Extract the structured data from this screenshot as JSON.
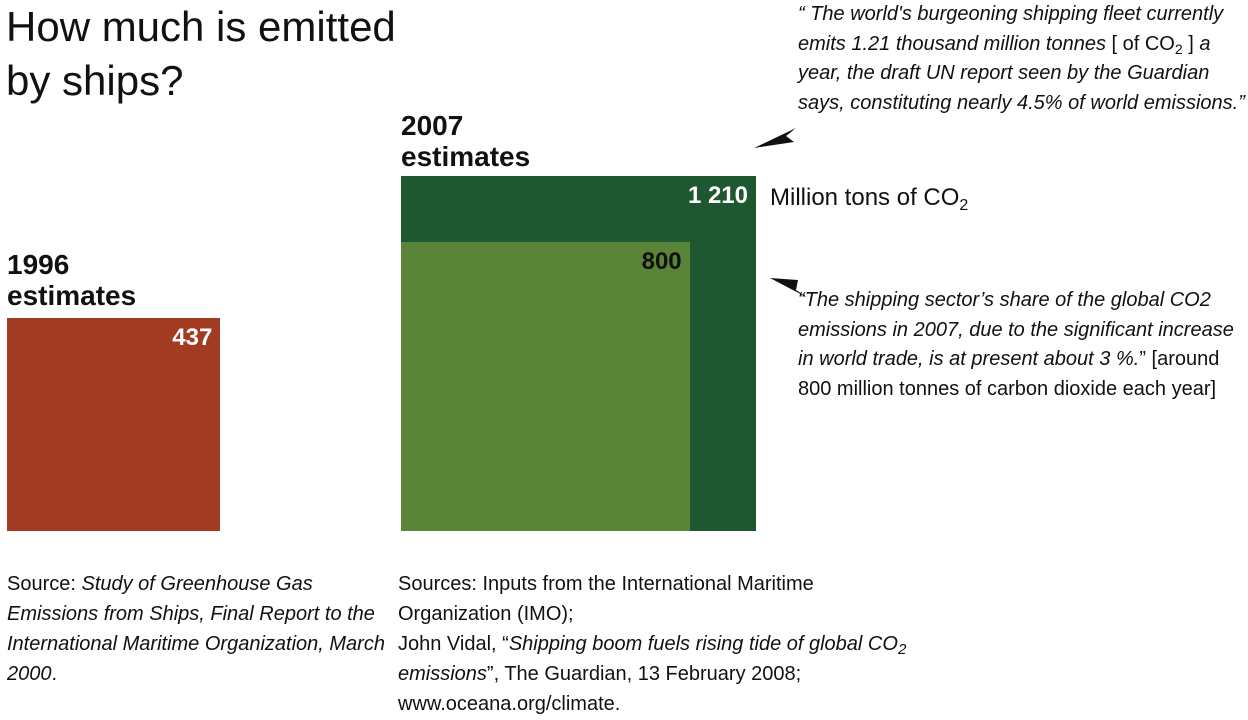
{
  "title": "How much is emitted by ships?",
  "chart_data": {
    "type": "proportional-area",
    "unit": "Million tons of CO",
    "unit_sub": "2",
    "groups": [
      {
        "heading": "1996 estimates",
        "boxes": [
          {
            "label": "437",
            "value": 437,
            "color": "#a23b22"
          }
        ]
      },
      {
        "heading": "2007 estimates",
        "boxes": [
          {
            "label": "1 210",
            "value": 1210,
            "color": "#1e5730"
          },
          {
            "label": "800",
            "value": 800,
            "color": "#5a8437"
          }
        ]
      }
    ]
  },
  "quote1": {
    "p1": "“ The world's burgeoning shipping fleet currently emits 1.21 thousand million tonnes ",
    "bracket_open": "[ of CO",
    "sub": "2",
    "bracket_close": " ]",
    "p2": " a year, the draft UN report seen by the Guardian says, constituting nearly 4.5% of world emissions.”"
  },
  "quote2": {
    "italic": "“The shipping sector’s share of the global CO2 emissions in 2007, due to the significant increase in world trade, is at present about 3 %.",
    "plain": "” [around 800 million tonnes of carbon dioxide each year]"
  },
  "source_1996": {
    "prefix": "Source: ",
    "italic": "Study of Greenhouse Gas Emissions from Ships, Final Report to the International Maritime Organization, March 2000",
    "suffix": "."
  },
  "source_2007": {
    "line1": "Sources: Inputs from the International Maritime Organization (IMO);",
    "l2a": "John Vidal, “",
    "l2b": "Shipping boom fuels rising tide of global CO",
    "l2sub": "2",
    "l2c": " emissions",
    "l2d": "”, The Guardian, 13 February 2008;",
    "line3": "www.oceana.org/climate."
  },
  "colors": {
    "box_1996": "#a23b22",
    "box_2007_total": "#1e5730",
    "box_2007_share": "#5a8437",
    "label_on_dark": "#ffffff",
    "label_on_light": "#111111"
  }
}
